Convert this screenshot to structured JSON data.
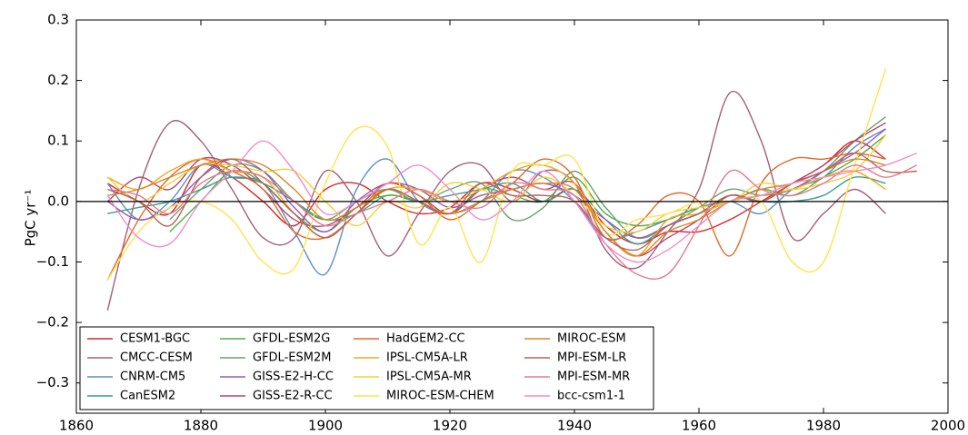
{
  "chart_data": {
    "type": "line",
    "ylabel": "PgC yr⁻¹",
    "x": [
      1865,
      1870,
      1875,
      1880,
      1885,
      1890,
      1895,
      1900,
      1905,
      1910,
      1915,
      1920,
      1925,
      1930,
      1935,
      1940,
      1945,
      1950,
      1955,
      1960,
      1965,
      1970,
      1975,
      1980,
      1985,
      1990,
      1995
    ],
    "xlim": [
      1860,
      2000
    ],
    "xticks": [
      1860,
      1880,
      1900,
      1920,
      1940,
      1960,
      1980,
      2000
    ],
    "ylim": [
      -0.35,
      0.3
    ],
    "yticks": [
      {
        "value": -0.3,
        "label": "−0.3"
      },
      {
        "value": -0.2,
        "label": "−0.2"
      },
      {
        "value": -0.1,
        "label": "−0.1"
      },
      {
        "value": 0,
        "label": "0.0"
      },
      0.1,
      0.2,
      0.3
    ],
    "legend": "lower left",
    "series": [
      {
        "name": "CESM1-BGC",
        "color": "#d62728",
        "values": [
          0.03,
          0.0,
          -0.02,
          0.06,
          0.04,
          0.0,
          -0.04,
          0.02,
          0.03,
          0.0,
          -0.02,
          -0.01,
          0.03,
          0.02,
          0.0,
          0.02,
          -0.04,
          -0.07,
          -0.05,
          -0.05,
          -0.03,
          0.0,
          0.03,
          0.06,
          0.1,
          0.07,
          null
        ]
      },
      {
        "name": "CMCC-CESM",
        "color": "#a0607a",
        "values": [
          -0.18,
          0.02,
          0.13,
          0.1,
          0.02,
          -0.06,
          -0.06,
          0.05,
          0.0,
          -0.09,
          -0.02,
          0.05,
          0.06,
          0.0,
          0.05,
          0.03,
          -0.08,
          -0.11,
          -0.05,
          0.02,
          0.18,
          0.1,
          -0.06,
          -0.02,
          0.02,
          -0.02,
          null
        ]
      },
      {
        "name": "CNRM-CM5",
        "color": "#5b8fc7",
        "values": [
          0.03,
          -0.03,
          0.0,
          0.06,
          0.04,
          0.03,
          -0.05,
          -0.12,
          0.02,
          0.07,
          0.0,
          -0.02,
          0.0,
          0.05,
          0.04,
          0.0,
          -0.06,
          -0.05,
          -0.03,
          -0.01,
          0.0,
          -0.02,
          0.02,
          0.04,
          0.09,
          0.12,
          null
        ]
      },
      {
        "name": "CanESM2",
        "color": "#3a9e8f",
        "values": [
          -0.02,
          -0.01,
          0.0,
          0.02,
          0.04,
          0.03,
          0.0,
          -0.03,
          -0.02,
          0.01,
          0.0,
          0.01,
          0.02,
          0.03,
          0.0,
          0.02,
          -0.03,
          -0.07,
          -0.04,
          -0.02,
          0.01,
          0.0,
          0.0,
          0.01,
          0.04,
          0.03,
          null
        ]
      },
      {
        "name": "GFDL-ESM2G",
        "color": "#4daf4a",
        "values": [
          null,
          null,
          -0.05,
          0.0,
          0.05,
          0.03,
          -0.02,
          -0.05,
          -0.01,
          0.01,
          0.0,
          -0.02,
          0.02,
          0.01,
          0.0,
          0.04,
          -0.02,
          -0.04,
          -0.03,
          -0.01,
          0.0,
          0.02,
          0.01,
          0.04,
          0.07,
          0.11,
          null
        ]
      },
      {
        "name": "GFDL-ESM2M",
        "color": "#6f9f6f",
        "values": [
          null,
          null,
          -0.03,
          0.02,
          0.06,
          0.05,
          0.0,
          -0.03,
          0.0,
          0.02,
          0.0,
          0.02,
          0.03,
          -0.03,
          -0.01,
          0.05,
          -0.01,
          -0.06,
          -0.04,
          -0.01,
          0.02,
          0.01,
          0.02,
          0.05,
          0.1,
          0.14,
          null
        ]
      },
      {
        "name": "GISS-E2-H-CC",
        "color": "#9b59b6",
        "values": [
          0.0,
          -0.03,
          -0.01,
          0.04,
          0.07,
          0.05,
          -0.01,
          -0.05,
          0.0,
          0.03,
          0.02,
          -0.01,
          0.01,
          0.02,
          0.03,
          0.01,
          -0.03,
          -0.06,
          -0.04,
          -0.02,
          0.0,
          0.01,
          0.02,
          0.05,
          0.08,
          0.12,
          null
        ]
      },
      {
        "name": "GISS-E2-R-CC",
        "color": "#b5476b",
        "values": [
          0.0,
          0.04,
          0.02,
          0.07,
          0.06,
          0.02,
          -0.03,
          -0.04,
          -0.01,
          0.03,
          0.01,
          -0.02,
          0.02,
          0.04,
          0.02,
          0.03,
          -0.05,
          -0.09,
          -0.06,
          -0.03,
          0.01,
          0.0,
          0.03,
          0.06,
          0.1,
          0.13,
          null
        ]
      },
      {
        "name": "HadGEM2-CC",
        "color": "#e0692a",
        "values": [
          -0.13,
          -0.03,
          0.04,
          0.07,
          0.05,
          0.02,
          -0.05,
          -0.06,
          -0.02,
          0.03,
          0.01,
          -0.03,
          0.0,
          0.03,
          0.07,
          0.04,
          -0.06,
          -0.04,
          0.01,
          0.0,
          -0.09,
          0.03,
          0.07,
          0.07,
          0.08,
          0.07,
          null
        ]
      },
      {
        "name": "IPSL-CM5A-LR",
        "color": "#f5a623",
        "values": [
          0.04,
          0.02,
          0.05,
          0.07,
          0.05,
          0.04,
          -0.02,
          -0.06,
          -0.02,
          0.02,
          0.02,
          0.0,
          0.02,
          0.05,
          0.06,
          0.03,
          -0.05,
          -0.09,
          -0.03,
          -0.02,
          0.0,
          0.01,
          0.02,
          0.04,
          0.05,
          0.02,
          null
        ]
      },
      {
        "name": "IPSL-CM5A-MR",
        "color": "#f2d03a",
        "values": [
          0.04,
          0.0,
          0.03,
          0.06,
          0.06,
          0.05,
          0.05,
          0.0,
          -0.04,
          0.0,
          -0.01,
          0.03,
          0.02,
          0.0,
          0.04,
          0.01,
          -0.04,
          -0.05,
          -0.02,
          -0.01,
          0.0,
          0.03,
          0.02,
          0.03,
          0.05,
          0.11,
          null
        ]
      },
      {
        "name": "MIROC-ESM-CHEM",
        "color": "#ffe34d",
        "values": [
          -0.13,
          -0.05,
          -0.01,
          0.0,
          -0.03,
          -0.1,
          -0.11,
          0.03,
          0.12,
          0.09,
          -0.07,
          -0.01,
          -0.1,
          0.05,
          0.06,
          0.07,
          -0.05,
          -0.03,
          -0.02,
          0.0,
          0.0,
          0.0,
          -0.1,
          -0.1,
          0.06,
          0.22,
          null
        ]
      },
      {
        "name": "MIROC-ESM",
        "color": "#d4892a",
        "values": [
          0.01,
          0.02,
          0.04,
          0.06,
          0.07,
          0.06,
          0.02,
          -0.03,
          -0.01,
          0.02,
          0.0,
          -0.02,
          0.0,
          0.02,
          0.03,
          0.02,
          -0.05,
          -0.09,
          -0.05,
          -0.03,
          0.0,
          0.02,
          0.03,
          0.05,
          0.07,
          0.06,
          null
        ]
      },
      {
        "name": "MPI-ESM-LR",
        "color": "#b5625a",
        "values": [
          0.02,
          0.0,
          -0.04,
          0.04,
          0.07,
          0.03,
          -0.02,
          -0.06,
          -0.02,
          0.02,
          0.0,
          -0.02,
          0.03,
          0.01,
          0.01,
          0.0,
          -0.06,
          -0.08,
          -0.04,
          -0.02,
          0.01,
          0.0,
          0.03,
          0.05,
          0.08,
          0.05,
          0.05
        ]
      },
      {
        "name": "MPI-ESM-MR",
        "color": "#e07b91",
        "values": [
          0.02,
          0.01,
          -0.02,
          0.03,
          0.05,
          0.04,
          0.0,
          -0.04,
          -0.02,
          0.0,
          0.02,
          0.0,
          -0.01,
          0.03,
          0.02,
          0.01,
          -0.07,
          -0.12,
          -0.12,
          -0.04,
          0.05,
          0.02,
          0.01,
          0.03,
          0.06,
          0.04,
          0.06
        ]
      },
      {
        "name": "bcc-csm1-1",
        "color": "#f08cc8",
        "values": [
          0.01,
          -0.06,
          -0.07,
          0.0,
          0.05,
          0.1,
          0.05,
          -0.02,
          0.0,
          0.03,
          0.06,
          0.02,
          -0.03,
          0.0,
          0.05,
          0.0,
          -0.07,
          -0.1,
          -0.08,
          -0.04,
          0.0,
          0.01,
          0.03,
          0.04,
          0.05,
          0.06,
          0.08
        ]
      }
    ]
  }
}
